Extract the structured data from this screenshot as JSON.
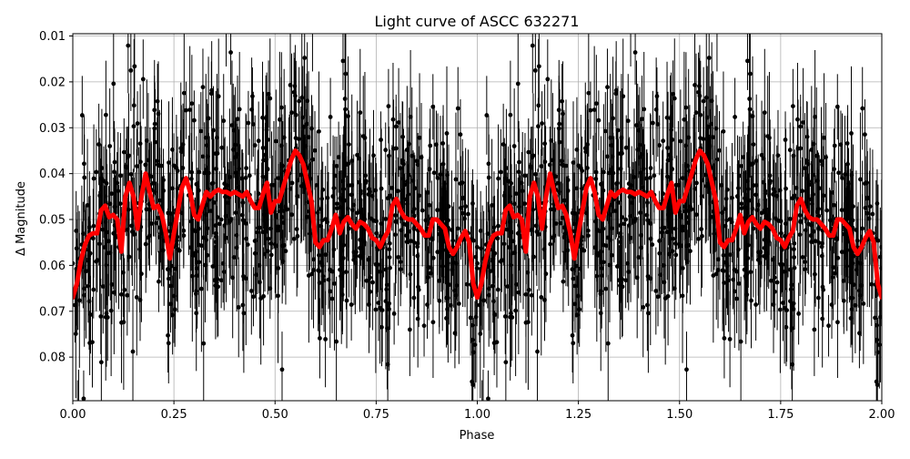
{
  "chart_data": {
    "type": "scatter",
    "title": "Light curve of ASCC 632271",
    "xlabel": "Phase",
    "ylabel": "Δ Magnitude",
    "xlim": [
      0.0,
      2.0
    ],
    "ylim": [
      0.0895,
      0.0095
    ],
    "y_inverted": true,
    "grid": true,
    "xticks": [
      "0.00",
      "0.25",
      "0.50",
      "0.75",
      "1.00",
      "1.25",
      "1.50",
      "1.75",
      "2.00"
    ],
    "yticks": [
      "0.01",
      "0.02",
      "0.03",
      "0.04",
      "0.05",
      "0.06",
      "0.07",
      "0.08"
    ],
    "colors": {
      "observations": "#000000",
      "model": "#ff0000",
      "grid": "#b0b0b0"
    },
    "series": [
      {
        "kind": "errorbar-scatter",
        "period_phase_range": [
          0.0,
          1.0
        ],
        "repeats_every": 1.0,
        "median_magnitude_scatter": 0.012,
        "typical_error_bar": 0.01
      },
      {
        "kind": "binned-line",
        "x": [
          0.0,
          0.01,
          0.02,
          0.03,
          0.04,
          0.05,
          0.06,
          0.07,
          0.08,
          0.09,
          0.1,
          0.11,
          0.12,
          0.13,
          0.14,
          0.15,
          0.16,
          0.17,
          0.18,
          0.19,
          0.2,
          0.21,
          0.22,
          0.23,
          0.24,
          0.25,
          0.26,
          0.27,
          0.28,
          0.29,
          0.3,
          0.31,
          0.32,
          0.33,
          0.34,
          0.35,
          0.36,
          0.37,
          0.38,
          0.39,
          0.4,
          0.41,
          0.42,
          0.43,
          0.44,
          0.45,
          0.46,
          0.47,
          0.48,
          0.49,
          0.5,
          0.51,
          0.52,
          0.53,
          0.54,
          0.55,
          0.56,
          0.57,
          0.58,
          0.59,
          0.6,
          0.61,
          0.62,
          0.63,
          0.64,
          0.65,
          0.66,
          0.67,
          0.68,
          0.69,
          0.7,
          0.71,
          0.72,
          0.73,
          0.74,
          0.75,
          0.76,
          0.77,
          0.78,
          0.79,
          0.8,
          0.81,
          0.82,
          0.83,
          0.84,
          0.85,
          0.86,
          0.87,
          0.88,
          0.89,
          0.9,
          0.91,
          0.92,
          0.93,
          0.94,
          0.95,
          0.96,
          0.97,
          0.98,
          0.99,
          1.0
        ],
        "y": [
          0.067,
          0.064,
          0.059,
          0.0555,
          0.0535,
          0.053,
          0.053,
          0.048,
          0.047,
          0.0495,
          0.049,
          0.05,
          0.057,
          0.045,
          0.042,
          0.045,
          0.052,
          0.045,
          0.04,
          0.044,
          0.0475,
          0.047,
          0.049,
          0.053,
          0.0585,
          0.053,
          0.048,
          0.043,
          0.041,
          0.044,
          0.049,
          0.05,
          0.047,
          0.044,
          0.045,
          0.044,
          0.0435,
          0.044,
          0.044,
          0.0445,
          0.044,
          0.0445,
          0.045,
          0.044,
          0.046,
          0.0475,
          0.0475,
          0.0445,
          0.042,
          0.0485,
          0.046,
          0.046,
          0.043,
          0.04,
          0.037,
          0.035,
          0.036,
          0.038,
          0.042,
          0.046,
          0.055,
          0.056,
          0.0545,
          0.0545,
          0.052,
          0.049,
          0.053,
          0.0505,
          0.0495,
          0.051,
          0.052,
          0.0505,
          0.051,
          0.052,
          0.054,
          0.0545,
          0.056,
          0.054,
          0.0525,
          0.047,
          0.0455,
          0.048,
          0.0495,
          0.05,
          0.05,
          0.051,
          0.052,
          0.0535,
          0.0535,
          0.05,
          0.05,
          0.051,
          0.052,
          0.056,
          0.0575,
          0.056,
          0.054,
          0.0525,
          0.055,
          0.064,
          0.067
        ]
      }
    ]
  }
}
